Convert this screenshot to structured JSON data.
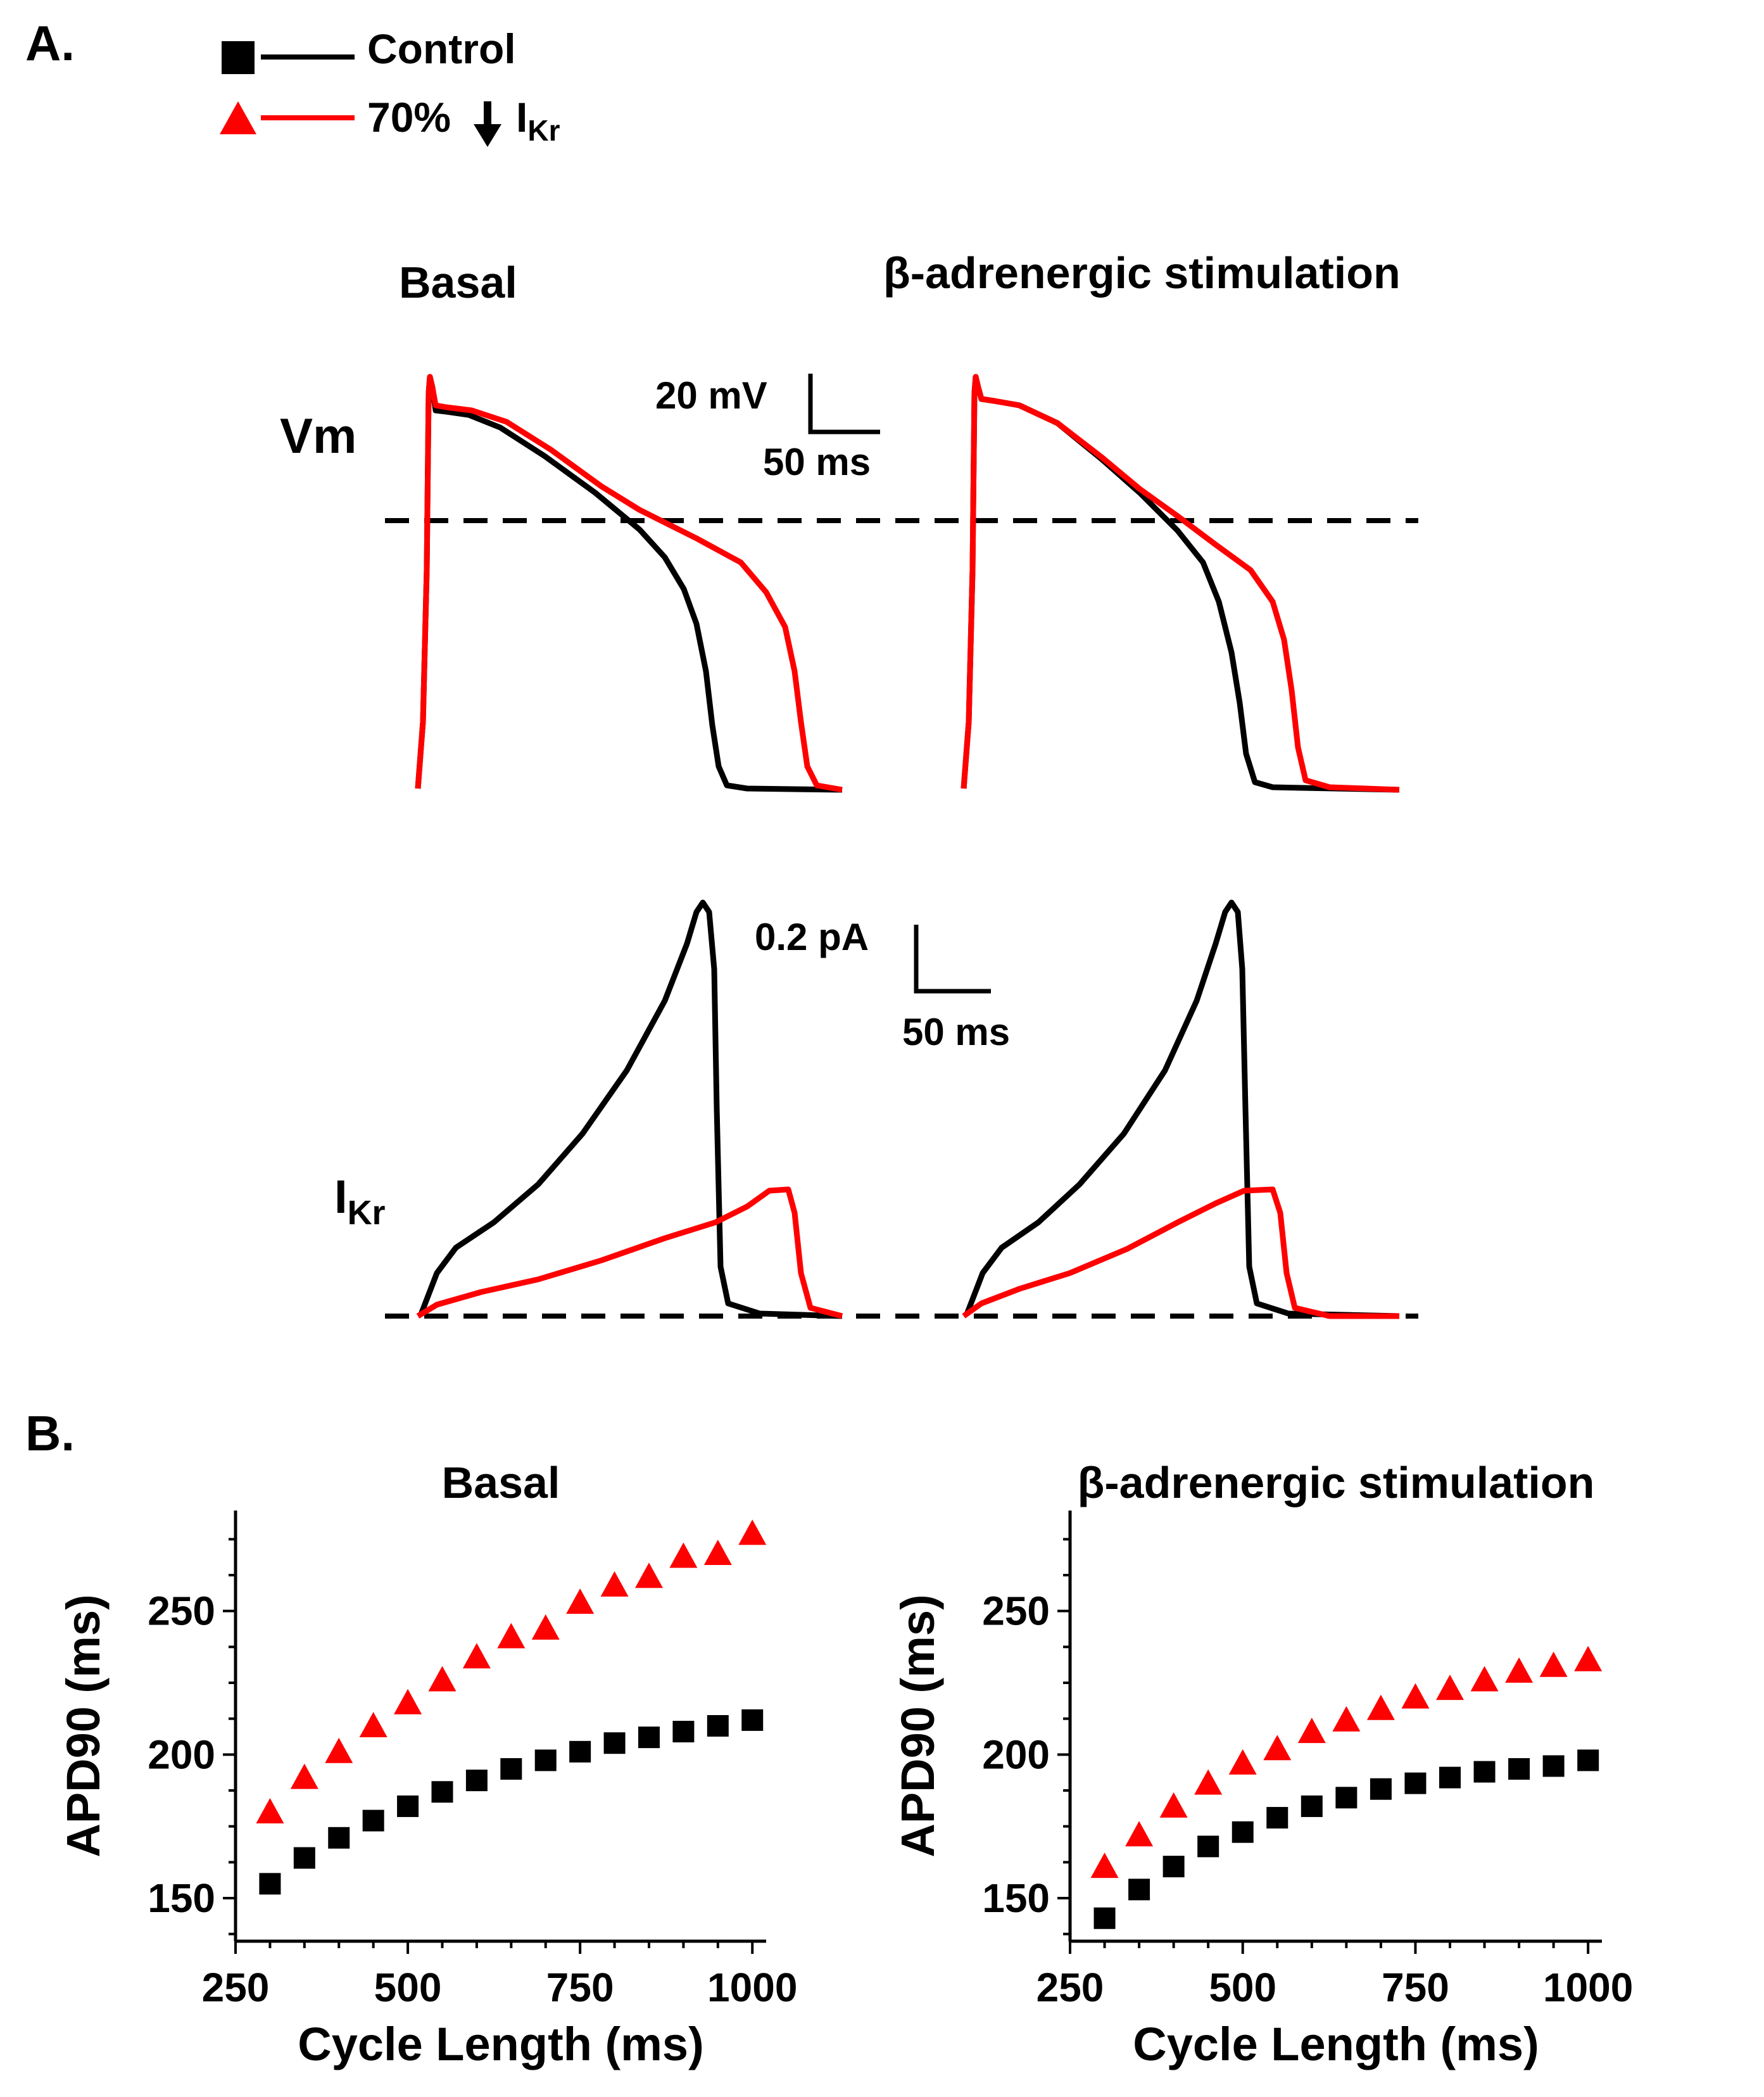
{
  "colors": {
    "control": "#000000",
    "ikr": "#ff0000"
  },
  "panelA": {
    "label": "A.",
    "legend": {
      "control": "Control",
      "ikr_pct": "70%",
      "ikr_sym": "I",
      "ikr_sub": "Kr",
      "control_marker": "square",
      "ikr_marker": "triangle",
      "arrow": "down-arrow-icon"
    },
    "col_titles": [
      "Basal",
      "β-adrenergic stimulation"
    ],
    "row_labels": {
      "vm": "Vm",
      "ikr_sym": "I",
      "ikr_sub": "Kr"
    },
    "scalebars": {
      "vm_y": "20 mV",
      "vm_x": "50 ms",
      "ikr_y": "0.2 pA",
      "ikr_x": "50 ms"
    }
  },
  "panelB": {
    "label": "B."
  },
  "chart_data": [
    {
      "type": "scatter",
      "title": "Basal",
      "xlabel": "Cycle Length (ms)",
      "ylabel": "APD90 (ms)",
      "xlim": [
        250,
        1020
      ],
      "ylim": [
        135,
        285
      ],
      "xticks": [
        250,
        500,
        750,
        1000
      ],
      "yticks": [
        150,
        200,
        250
      ],
      "series": [
        {
          "name": "Control",
          "marker": "square",
          "color": "#000000",
          "x": [
            300,
            350,
            400,
            450,
            500,
            550,
            600,
            650,
            700,
            750,
            800,
            850,
            900,
            950,
            1000
          ],
          "y": [
            155,
            164,
            171,
            177,
            182,
            187,
            191,
            195,
            198,
            201,
            204,
            206,
            208,
            210,
            212
          ]
        },
        {
          "name": "70% ↓ IKr",
          "marker": "triangle",
          "color": "#ff0000",
          "x": [
            300,
            350,
            400,
            450,
            500,
            550,
            600,
            650,
            700,
            750,
            800,
            850,
            900,
            950,
            1000
          ],
          "y": [
            180,
            192,
            201,
            210,
            218,
            226,
            234,
            241,
            244,
            253,
            259,
            262,
            269,
            270,
            277
          ]
        }
      ]
    },
    {
      "type": "scatter",
      "title": "β-adrenergic stimulation",
      "xlabel": "Cycle Length (ms)",
      "ylabel": "APD90 (ms)",
      "xlim": [
        250,
        1020
      ],
      "ylim": [
        135,
        285
      ],
      "xticks": [
        250,
        500,
        750,
        1000
      ],
      "yticks": [
        150,
        200,
        250
      ],
      "series": [
        {
          "name": "Control",
          "marker": "square",
          "color": "#000000",
          "x": [
            300,
            350,
            400,
            450,
            500,
            550,
            600,
            650,
            700,
            750,
            800,
            850,
            900,
            950,
            1000
          ],
          "y": [
            143,
            153,
            161,
            168,
            173,
            178,
            182,
            185,
            188,
            190,
            192,
            194,
            195,
            196,
            198
          ]
        },
        {
          "name": "70% ↓ IKr",
          "marker": "triangle",
          "color": "#ff0000",
          "x": [
            300,
            350,
            400,
            450,
            500,
            550,
            600,
            650,
            700,
            750,
            800,
            850,
            900,
            950,
            1000
          ],
          "y": [
            161,
            172,
            182,
            190,
            197,
            202,
            208,
            212,
            216,
            220,
            223,
            226,
            229,
            231,
            233
          ]
        }
      ]
    }
  ]
}
